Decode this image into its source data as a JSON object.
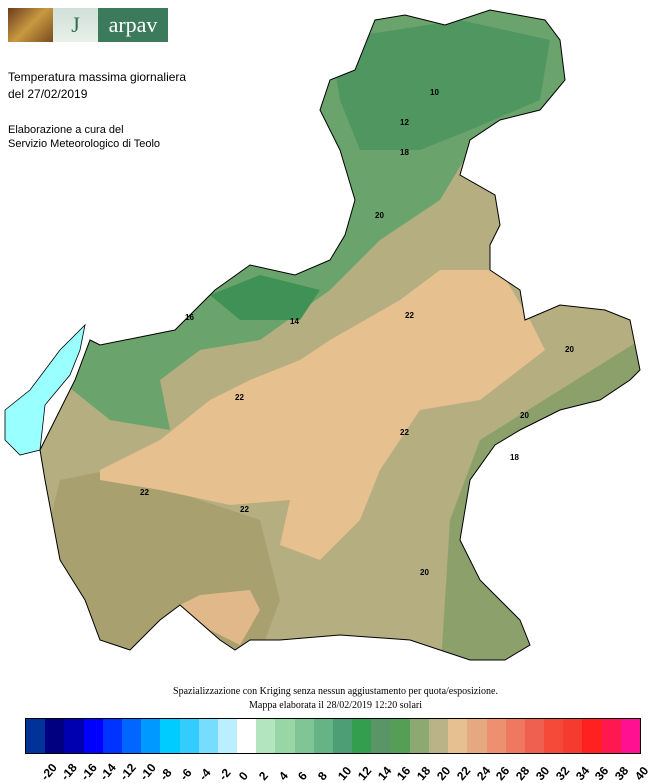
{
  "logo": {
    "brand": "arpav",
    "mark": "J"
  },
  "header": {
    "title_line1": "Temperatura massima giornaliera",
    "title_line2": "del 27/02/2019",
    "credit_line1": "Elaborazione a cura del",
    "credit_line2": "Servizio Meteorologico di Teolo"
  },
  "footer": {
    "method": "Spazializzazione con Kriging senza nessun aggiustamento per quota/esposizione.",
    "produced": "Mappa elaborata il 28/02/2019 12:20 solari"
  },
  "legend": {
    "colors": [
      "#003399",
      "#000080",
      "#0000b0",
      "#0000ff",
      "#0033ff",
      "#0066ff",
      "#0099ff",
      "#00ccff",
      "#33ccff",
      "#77ddff",
      "#bbeeff",
      "#ffffff",
      "#b3e6bf",
      "#99d6a6",
      "#80c595",
      "#66b385",
      "#4d9e75",
      "#339e4d",
      "#5a9566",
      "#559e55",
      "#8ca873",
      "#bbb388",
      "#e6c090",
      "#e6a880",
      "#ed9070",
      "#f07860",
      "#f06050",
      "#f54a3a",
      "#f53a30",
      "#ff2020",
      "#ff1850",
      "#ff1090"
    ],
    "labels": [
      "-20",
      "-18",
      "-16",
      "-14",
      "-12",
      "-10",
      "-8",
      "-6",
      "-4",
      "-2",
      "0",
      "2",
      "4",
      "6",
      "8",
      "10",
      "12",
      "14",
      "16",
      "18",
      "20",
      "22",
      "24",
      "26",
      "28",
      "30",
      "32",
      "34",
      "36",
      "38",
      "40"
    ]
  },
  "contour_labels": [
    "22",
    "22",
    "22",
    "22",
    "20",
    "20",
    "18",
    "16",
    "14",
    "12",
    "10",
    "20",
    "22",
    "20",
    "18"
  ],
  "map_colors": {
    "lake": "#99ffff",
    "base": "#b4ae80",
    "warm": "#e6c08f",
    "alpine": "#5f9e66",
    "alpine_dark": "#4a915c",
    "coast": "#8ca06c"
  }
}
